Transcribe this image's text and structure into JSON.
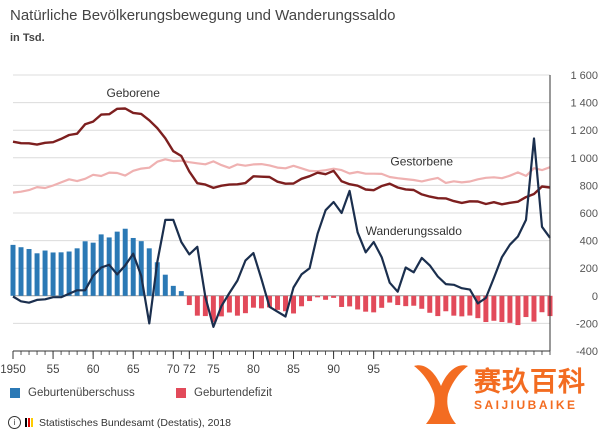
{
  "header": {
    "title": "Natürliche Bevölkerungsbewegung und Wanderungssaldo",
    "unit": "in Tsd."
  },
  "legend": [
    {
      "label": "Geburtenüberschuss",
      "color": "#2b79b5"
    },
    {
      "label": "Geburtendefizit",
      "color": "#e24a5a"
    }
  ],
  "footer": {
    "credit": "Statistisches Bundesamt (Destatis), 2018",
    "cc_symbol": "©",
    "cc_letter": "i"
  },
  "watermark": {
    "text_cn": "赛玖百科",
    "text_en": "SAIJIUBAIKE"
  },
  "colors": {
    "geborene": "#7d1f1f",
    "gestorbene": "#efb1b1",
    "wanderung": "#1b2f4e",
    "surplus": "#2b79b5",
    "deficit": "#e24a5a",
    "grid": "#dcdcdc",
    "axis": "#333333"
  },
  "chart_data": {
    "type": "bar+line",
    "ylim": [
      -400,
      1600
    ],
    "yticks": [
      -400,
      -200,
      0,
      200,
      400,
      600,
      800,
      1000,
      1200,
      1400,
      1600
    ],
    "ytick_labels": [
      "-400",
      "-200",
      "0",
      "200",
      "400",
      "600",
      "800",
      "1 000",
      "1 200",
      "1 400",
      "1 600"
    ],
    "xlim": [
      1950,
      2017
    ],
    "xticks": [
      {
        "year": 1950,
        "label": "1950"
      },
      {
        "year": 1955,
        "label": "55"
      },
      {
        "year": 1960,
        "label": "60"
      },
      {
        "year": 1965,
        "label": "65"
      },
      {
        "year": 1970,
        "label": "70"
      },
      {
        "year": 1972,
        "label": "72"
      },
      {
        "year": 1975,
        "label": "75"
      },
      {
        "year": 1980,
        "label": "80"
      },
      {
        "year": 1985,
        "label": "85"
      },
      {
        "year": 1990,
        "label": "90"
      },
      {
        "year": 1995,
        "label": "95"
      }
    ],
    "series_labels": [
      {
        "name": "Geborene",
        "year": 1965,
        "value": 1440
      },
      {
        "name": "Gestorbene",
        "year": 2001,
        "value": 945
      },
      {
        "name": "Wanderungssaldo",
        "year": 2000,
        "value": 440
      }
    ],
    "years": [
      1950,
      1951,
      1952,
      1953,
      1954,
      1955,
      1956,
      1957,
      1958,
      1959,
      1960,
      1961,
      1962,
      1963,
      1964,
      1965,
      1966,
      1967,
      1968,
      1969,
      1970,
      1971,
      1972,
      1973,
      1974,
      1975,
      1976,
      1977,
      1978,
      1979,
      1980,
      1981,
      1982,
      1983,
      1984,
      1985,
      1986,
      1987,
      1988,
      1989,
      1990,
      1991,
      1992,
      1993,
      1994,
      1995,
      1996,
      1997,
      1998,
      1999,
      2000,
      2001,
      2002,
      2003,
      2004,
      2005,
      2006,
      2007,
      2008,
      2009,
      2010,
      2011,
      2012,
      2013,
      2014,
      2015,
      2016,
      2017
    ],
    "geborene": [
      1117,
      1106,
      1105,
      1096,
      1109,
      1113,
      1137,
      1165,
      1175,
      1243,
      1262,
      1313,
      1316,
      1355,
      1357,
      1325,
      1318,
      1272,
      1215,
      1142,
      1048,
      1013,
      901,
      816,
      806,
      782,
      798,
      806,
      808,
      817,
      866,
      863,
      861,
      827,
      812,
      814,
      848,
      867,
      892,
      881,
      906,
      830,
      809,
      798,
      770,
      765,
      796,
      812,
      785,
      771,
      767,
      735,
      719,
      707,
      706,
      686,
      673,
      685,
      683,
      665,
      678,
      663,
      674,
      682,
      715,
      738,
      792,
      785
    ],
    "gestorbene": [
      748,
      754,
      766,
      788,
      781,
      799,
      822,
      844,
      831,
      848,
      877,
      868,
      893,
      890,
      871,
      906,
      922,
      928,
      972,
      989,
      976,
      979,
      968,
      960,
      953,
      974,
      947,
      927,
      952,
      943,
      952,
      954,
      945,
      929,
      924,
      942,
      924,
      905,
      903,
      910,
      921,
      911,
      886,
      897,
      885,
      885,
      883,
      861,
      852,
      846,
      839,
      829,
      842,
      854,
      818,
      830,
      822,
      828,
      844,
      855,
      859,
      852,
      870,
      894,
      869,
      925,
      911,
      932
    ],
    "wanderung": [
      -5,
      -40,
      -50,
      -30,
      -25,
      -10,
      -10,
      15,
      40,
      40,
      145,
      205,
      225,
      155,
      220,
      305,
      145,
      -200,
      245,
      550,
      550,
      390,
      300,
      355,
      -10,
      -225,
      -75,
      20,
      110,
      255,
      310,
      120,
      -80,
      -115,
      -150,
      60,
      155,
      200,
      450,
      620,
      680,
      600,
      760,
      460,
      315,
      390,
      280,
      95,
      30,
      205,
      170,
      275,
      220,
      140,
      85,
      80,
      55,
      45,
      -55,
      -15,
      130,
      280,
      370,
      430,
      550,
      1140,
      500,
      420
    ],
    "natural_balance": [
      369,
      352,
      339,
      308,
      328,
      314,
      315,
      321,
      344,
      395,
      385,
      445,
      423,
      465,
      486,
      419,
      396,
      344,
      243,
      153,
      72,
      34,
      -67,
      -144,
      -147,
      -192,
      -149,
      -121,
      -144,
      -126,
      -86,
      -91,
      -84,
      -102,
      -112,
      -128,
      -76,
      -38,
      -11,
      -29,
      -15,
      -81,
      -77,
      -99,
      -115,
      -120,
      -87,
      -49,
      -67,
      -75,
      -72,
      -94,
      -123,
      -147,
      -112,
      -144,
      -149,
      -143,
      -162,
      -190,
      -181,
      -190,
      -196,
      -212,
      -154,
      -187,
      -119,
      -147
    ]
  }
}
